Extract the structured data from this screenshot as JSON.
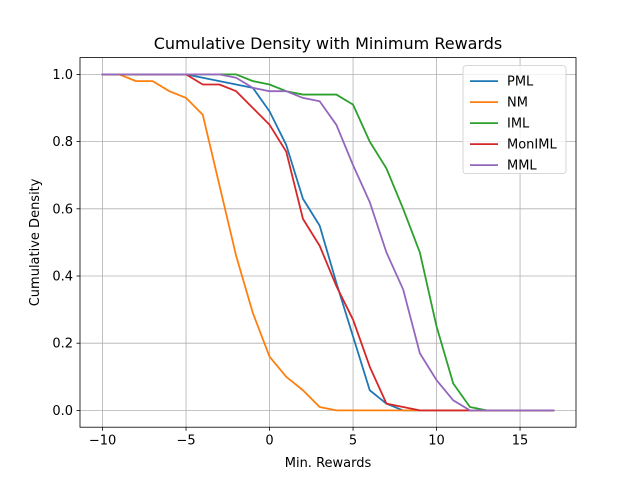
{
  "chart_data": {
    "type": "line",
    "title": "Cumulative Density with Minimum Rewards",
    "xlabel": "Min. Rewards",
    "ylabel": "Cumulative Density",
    "xlim": [
      -11.35,
      18.35
    ],
    "ylim": [
      -0.05,
      1.05
    ],
    "xticks": [
      -10,
      -5,
      0,
      5,
      10,
      15
    ],
    "xtick_labels": [
      "−10",
      "−5",
      "0",
      "5",
      "10",
      "15"
    ],
    "yticks": [
      0.0,
      0.2,
      0.4,
      0.6,
      0.8,
      1.0
    ],
    "ytick_labels": [
      "0.0",
      "0.2",
      "0.4",
      "0.6",
      "0.8",
      "1.0"
    ],
    "grid": true,
    "legend_position": "top-right",
    "x": [
      -10,
      -9,
      -8,
      -7,
      -6,
      -5,
      -4,
      -3,
      -2,
      -1,
      0,
      1,
      2,
      3,
      4,
      5,
      6,
      7,
      8,
      9,
      10,
      11,
      12,
      13,
      14,
      15,
      16,
      17
    ],
    "series": [
      {
        "name": "PML",
        "color": "#1f77b4",
        "values": [
          1.0,
          1.0,
          1.0,
          1.0,
          1.0,
          1.0,
          0.99,
          0.98,
          0.97,
          0.96,
          0.89,
          0.79,
          0.63,
          0.55,
          0.38,
          0.22,
          0.06,
          0.02,
          0.0,
          0.0,
          0.0,
          0.0,
          0.0,
          0.0,
          0.0,
          0.0,
          0.0,
          0.0
        ]
      },
      {
        "name": "NM",
        "color": "#ff7f0e",
        "values": [
          1.0,
          1.0,
          0.98,
          0.98,
          0.95,
          0.93,
          0.88,
          0.67,
          0.46,
          0.29,
          0.16,
          0.1,
          0.06,
          0.01,
          0.0,
          0.0,
          0.0,
          0.0,
          0.0,
          0.0,
          0.0,
          0.0,
          0.0,
          0.0,
          0.0,
          0.0,
          0.0,
          0.0
        ]
      },
      {
        "name": "IML",
        "color": "#2ca02c",
        "values": [
          1.0,
          1.0,
          1.0,
          1.0,
          1.0,
          1.0,
          1.0,
          1.0,
          1.0,
          0.98,
          0.97,
          0.95,
          0.94,
          0.94,
          0.94,
          0.91,
          0.8,
          0.72,
          0.6,
          0.47,
          0.25,
          0.08,
          0.01,
          0.0,
          0.0,
          0.0,
          0.0,
          0.0
        ]
      },
      {
        "name": "MonIML",
        "color": "#d62728",
        "values": [
          1.0,
          1.0,
          1.0,
          1.0,
          1.0,
          1.0,
          0.97,
          0.97,
          0.95,
          0.9,
          0.85,
          0.77,
          0.57,
          0.49,
          0.37,
          0.27,
          0.13,
          0.02,
          0.01,
          0.0,
          0.0,
          0.0,
          0.0,
          0.0,
          0.0,
          0.0,
          0.0,
          0.0
        ]
      },
      {
        "name": "MML",
        "color": "#9467bd",
        "values": [
          1.0,
          1.0,
          1.0,
          1.0,
          1.0,
          1.0,
          1.0,
          1.0,
          0.99,
          0.96,
          0.95,
          0.95,
          0.93,
          0.92,
          0.85,
          0.73,
          0.62,
          0.47,
          0.36,
          0.17,
          0.09,
          0.03,
          0.0,
          0.0,
          0.0,
          0.0,
          0.0,
          0.0
        ]
      }
    ]
  }
}
